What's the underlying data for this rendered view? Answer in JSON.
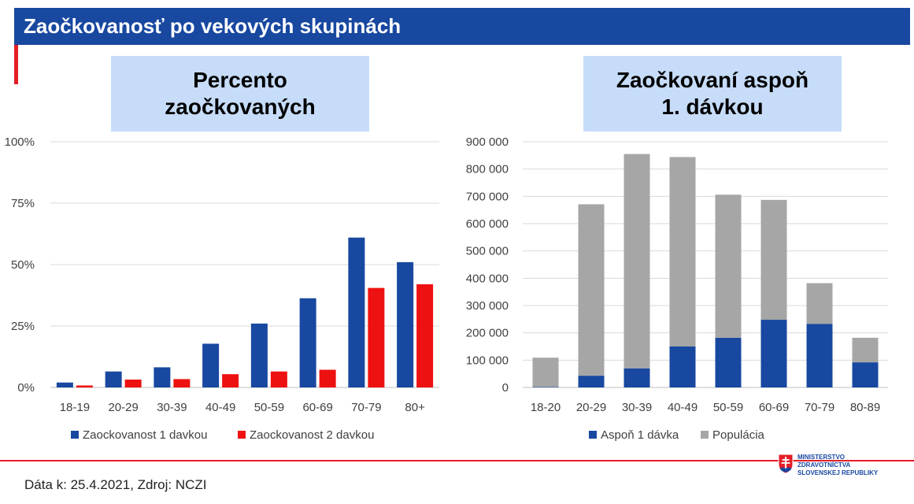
{
  "header": {
    "title": "Zaočkovanosť po vekových skupinách"
  },
  "panels": {
    "left_title": [
      "Percento",
      "zaočkovaných"
    ],
    "right_title": [
      "Zaočkovaní aspoň",
      "1. dávkou"
    ]
  },
  "footer": {
    "source": "Dáta k: 25.4.2021, Zdroj: NCZI",
    "ministry_lines": [
      "MINISTERSTVO",
      "ZDRAVOTNÍCTVA",
      "SLOVENSKEJ REPUBLIKY"
    ]
  },
  "colors": {
    "header_blue": "#1848a0",
    "accent_red": "#e41e26",
    "series_blue": "#1848a0",
    "series_red": "#ee1111",
    "population_gray": "#a6a6a6",
    "title_box": "#c6dcf8"
  },
  "chart_data": [
    {
      "type": "bar",
      "title": "",
      "categories": [
        "18-19",
        "20-29",
        "30-39",
        "40-49",
        "50-59",
        "60-69",
        "70-79",
        "80+"
      ],
      "series": [
        {
          "name": "Zaockovanost 1 davkou",
          "values": [
            2,
            6.5,
            8.2,
            17.8,
            26,
            36.3,
            61,
            51
          ]
        },
        {
          "name": "Zaockovanost 2 davkou",
          "values": [
            0.8,
            3.2,
            3.4,
            5.4,
            6.5,
            7.2,
            40.5,
            42
          ]
        }
      ],
      "yticks": [
        "0%",
        "25%",
        "50%",
        "75%",
        "100%"
      ],
      "ylim": [
        0,
        100
      ],
      "grid": true,
      "legend": "bottom"
    },
    {
      "type": "bar",
      "stacked": true,
      "title": "",
      "categories": [
        "18-20",
        "20-29",
        "30-39",
        "40-49",
        "50-59",
        "60-69",
        "70-79",
        "80-89"
      ],
      "series": [
        {
          "name": "Aspoň 1 dávka",
          "values": [
            2000,
            43000,
            70000,
            150000,
            182000,
            248000,
            233000,
            92000
          ]
        },
        {
          "name": "Populácia",
          "values": [
            107000,
            628000,
            785000,
            694000,
            524000,
            439000,
            149000,
            90000
          ]
        }
      ],
      "yticks": [
        "0",
        "100 000",
        "200 000",
        "300 000",
        "400 000",
        "500 000",
        "600 000",
        "700 000",
        "800 000",
        "900 000"
      ],
      "ylim": [
        0,
        900000
      ],
      "grid": true,
      "legend": "bottom"
    }
  ]
}
